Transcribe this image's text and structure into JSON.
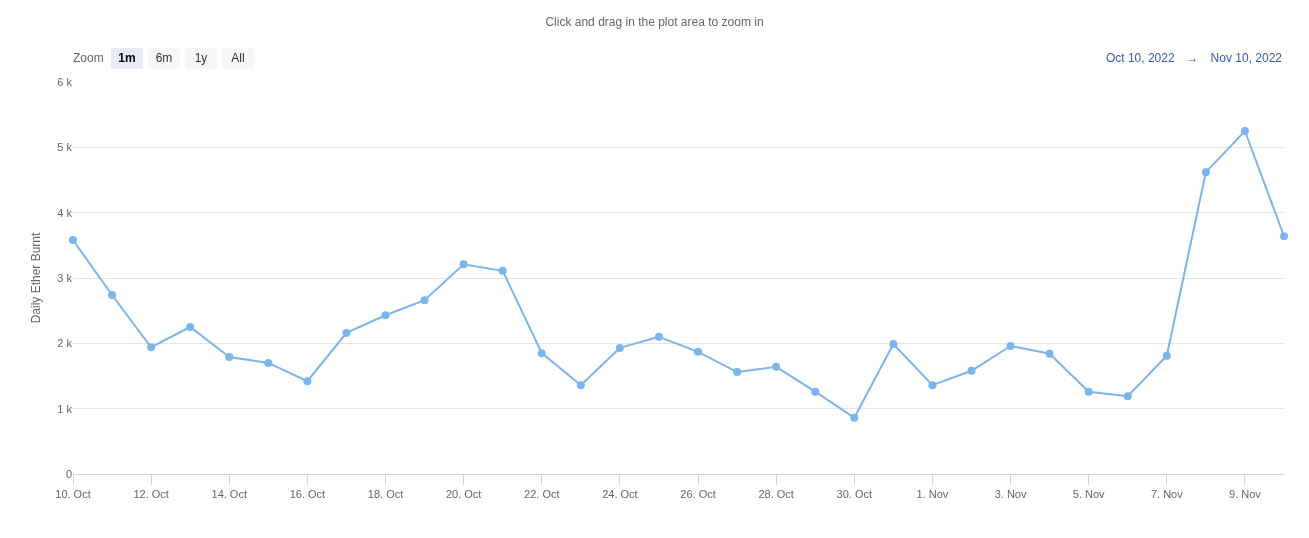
{
  "chart_data": {
    "type": "line",
    "subtitle": "Click and drag in the plot area to zoom in",
    "ylabel": "Daily Ether Burnt",
    "annotations": [
      "Zoom",
      "1m",
      "6m",
      "1y",
      "All",
      "Oct 10, 2022",
      "→",
      "Nov 10, 2022"
    ],
    "x": [
      "2022-10-10",
      "2022-10-11",
      "2022-10-12",
      "2022-10-13",
      "2022-10-14",
      "2022-10-15",
      "2022-10-16",
      "2022-10-17",
      "2022-10-18",
      "2022-10-19",
      "2022-10-20",
      "2022-10-21",
      "2022-10-22",
      "2022-10-23",
      "2022-10-24",
      "2022-10-25",
      "2022-10-26",
      "2022-10-27",
      "2022-10-28",
      "2022-10-29",
      "2022-10-30",
      "2022-10-31",
      "2022-11-01",
      "2022-11-02",
      "2022-11-03",
      "2022-11-04",
      "2022-11-05",
      "2022-11-06",
      "2022-11-07",
      "2022-11-08",
      "2022-11-09",
      "2022-11-10"
    ],
    "values": [
      3580,
      2740,
      1940,
      2250,
      1790,
      1700,
      1420,
      2160,
      2430,
      2660,
      3210,
      3110,
      1850,
      1360,
      1930,
      2100,
      1870,
      1560,
      1640,
      1260,
      860,
      1990,
      1360,
      1580,
      1960,
      1840,
      1260,
      1190,
      1810,
      4620,
      5250,
      3640
    ],
    "color": "#7cb5ec",
    "xlim": [
      "2022-10-10",
      "2022-11-10"
    ],
    "xticks": [
      {
        "value": "2022-10-10",
        "label": "10. Oct"
      },
      {
        "value": "2022-10-12",
        "label": "12. Oct"
      },
      {
        "value": "2022-10-14",
        "label": "14. Oct"
      },
      {
        "value": "2022-10-16",
        "label": "16. Oct"
      },
      {
        "value": "2022-10-18",
        "label": "18. Oct"
      },
      {
        "value": "2022-10-20",
        "label": "20. Oct"
      },
      {
        "value": "2022-10-22",
        "label": "22. Oct"
      },
      {
        "value": "2022-10-24",
        "label": "24. Oct"
      },
      {
        "value": "2022-10-26",
        "label": "26. Oct"
      },
      {
        "value": "2022-10-28",
        "label": "28. Oct"
      },
      {
        "value": "2022-10-30",
        "label": "30. Oct"
      },
      {
        "value": "2022-11-01",
        "label": "1. Nov"
      },
      {
        "value": "2022-11-03",
        "label": "3. Nov"
      },
      {
        "value": "2022-11-05",
        "label": "5. Nov"
      },
      {
        "value": "2022-11-07",
        "label": "7. Nov"
      },
      {
        "value": "2022-11-09",
        "label": "9. Nov"
      }
    ],
    "ylim": [
      0,
      6000
    ],
    "yticks": [
      0,
      {
        "value": 1000,
        "label": "1 k"
      },
      {
        "value": 2000,
        "label": "2 k"
      },
      {
        "value": 3000,
        "label": "3 k"
      },
      {
        "value": 4000,
        "label": "4 k"
      },
      {
        "value": 5000,
        "label": "5 k"
      },
      {
        "value": 6000,
        "label": "6 k"
      }
    ],
    "grid": "y",
    "marker": "circle",
    "line_style": "solid"
  }
}
